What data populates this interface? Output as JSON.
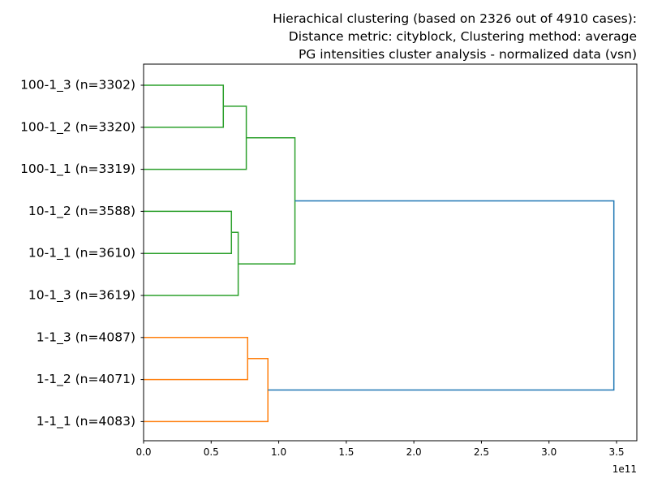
{
  "chart_data": {
    "type": "dendrogram",
    "orientation": "horizontal",
    "title_lines": [
      "Hierachical clustering (based on 2326 out of 4910 cases):",
      "Distance metric: cityblock, Clustering method: average",
      "PG intensities cluster analysis - normalized data (vsn)"
    ],
    "xlabel": "",
    "ylabel": "",
    "x_offset_text": "1e11",
    "xlim": [
      0,
      3.65
    ],
    "x_scale_label": "x 1e11",
    "x_ticks": [
      0.0,
      0.5,
      1.0,
      1.5,
      2.0,
      2.5,
      3.0,
      3.5
    ],
    "x_tick_labels": [
      "0.0",
      "0.5",
      "1.0",
      "1.5",
      "2.0",
      "2.5",
      "3.0",
      "3.5"
    ],
    "leaves_top_to_bottom": [
      "100-1_3 (n=3302)",
      "100-1_2 (n=3320)",
      "100-1_1 (n=3319)",
      "10-1_2 (n=3588)",
      "10-1_1 (n=3610)",
      "10-1_3 (n=3619)",
      "1-1_3 (n=4087)",
      "1-1_2 (n=4071)",
      "1-1_1 (n=4083)"
    ],
    "merges": [
      {
        "id": "A",
        "children": [
          "100-1_3 (n=3302)",
          "100-1_2 (n=3320)"
        ],
        "distance": 0.59,
        "color": "#2ca02c"
      },
      {
        "id": "B",
        "children": [
          "A",
          "100-1_1 (n=3319)"
        ],
        "distance": 0.76,
        "color": "#2ca02c"
      },
      {
        "id": "C",
        "children": [
          "10-1_2 (n=3588)",
          "10-1_1 (n=3610)"
        ],
        "distance": 0.65,
        "color": "#2ca02c"
      },
      {
        "id": "D",
        "children": [
          "C",
          "10-1_3 (n=3619)"
        ],
        "distance": 0.7,
        "color": "#2ca02c"
      },
      {
        "id": "E",
        "children": [
          "B",
          "D"
        ],
        "distance": 1.12,
        "color": "#2ca02c"
      },
      {
        "id": "F",
        "children": [
          "1-1_3 (n=4087)",
          "1-1_2 (n=4071)"
        ],
        "distance": 0.77,
        "color": "#ff7f0e"
      },
      {
        "id": "G",
        "children": [
          "F",
          "1-1_1 (n=4083)"
        ],
        "distance": 0.92,
        "color": "#ff7f0e"
      },
      {
        "id": "H",
        "children": [
          "E",
          "G"
        ],
        "distance": 3.48,
        "color": "#1f77b4"
      }
    ],
    "cluster_colors": {
      "cluster_1": "#2ca02c",
      "cluster_2": "#ff7f0e",
      "above_threshold": "#1f77b4"
    }
  }
}
